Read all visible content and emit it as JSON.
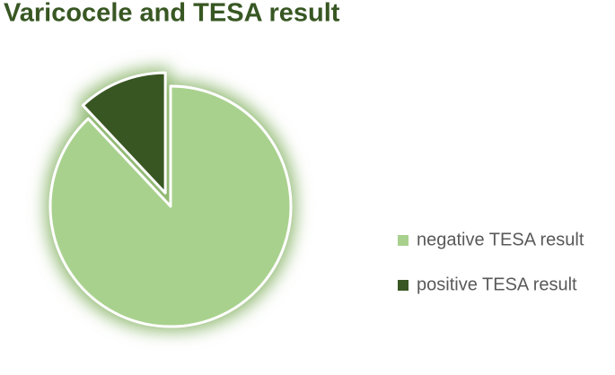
{
  "chart_data": {
    "type": "pie",
    "title": "Varicocele and TESA result",
    "categories": [
      "negative TESA result",
      "positive TESA result"
    ],
    "values": [
      88,
      12
    ],
    "colors": [
      "#a9d18e",
      "#385723"
    ],
    "legend": "right"
  }
}
